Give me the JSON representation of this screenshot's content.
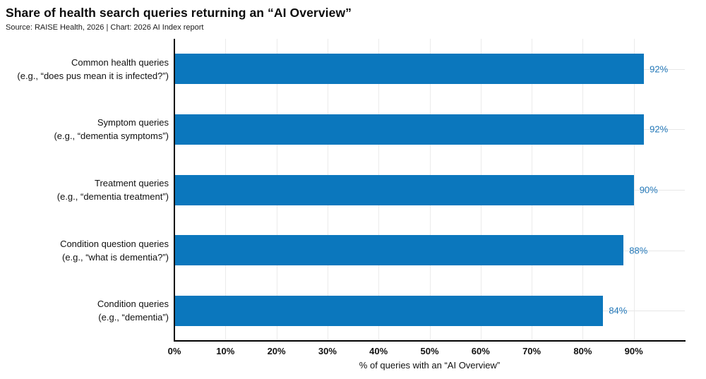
{
  "header": {
    "title": "Share of health search queries returning an “AI Overview”",
    "source": "Source: RAISE Health, 2026 | Chart: 2026 AI Index report"
  },
  "chart_data": {
    "type": "bar",
    "orientation": "horizontal",
    "title": "Share of health search queries returning an “AI Overview”",
    "subtitle": "Source: RAISE Health, 2026 | Chart: 2026 AI Index report",
    "xlabel": "% of queries with an “AI Overview”",
    "ylabel": "",
    "xlim": [
      0,
      100
    ],
    "grid": true,
    "legend": false,
    "bar_color": "#0b77bd",
    "value_label_color": "#2277b8",
    "axis_color": "#000000",
    "grid_color": "#ebebeb",
    "x_ticks": [
      {
        "value": 0,
        "label": "0%"
      },
      {
        "value": 10,
        "label": "10%"
      },
      {
        "value": 20,
        "label": "20%"
      },
      {
        "value": 30,
        "label": "30%"
      },
      {
        "value": 40,
        "label": "40%"
      },
      {
        "value": 50,
        "label": "50%"
      },
      {
        "value": 60,
        "label": "60%"
      },
      {
        "value": 70,
        "label": "70%"
      },
      {
        "value": 80,
        "label": "80%"
      },
      {
        "value": 90,
        "label": "90%"
      }
    ],
    "categories": [
      {
        "label": "Common health queries",
        "example": "(e.g., “does pus mean it is infected?”)"
      },
      {
        "label": "Symptom queries",
        "example": "(e.g., “dementia symptoms”)"
      },
      {
        "label": "Treatment queries",
        "example": "(e.g., “dementia treatment”)"
      },
      {
        "label": "Condition question queries",
        "example": "(e.g., “what is dementia?”)"
      },
      {
        "label": "Condition queries",
        "example": "(e.g., “dementia”)"
      }
    ],
    "values": [
      92,
      92,
      90,
      88,
      84
    ],
    "value_labels": [
      "92%",
      "92%",
      "90%",
      "88%",
      "84%"
    ]
  }
}
